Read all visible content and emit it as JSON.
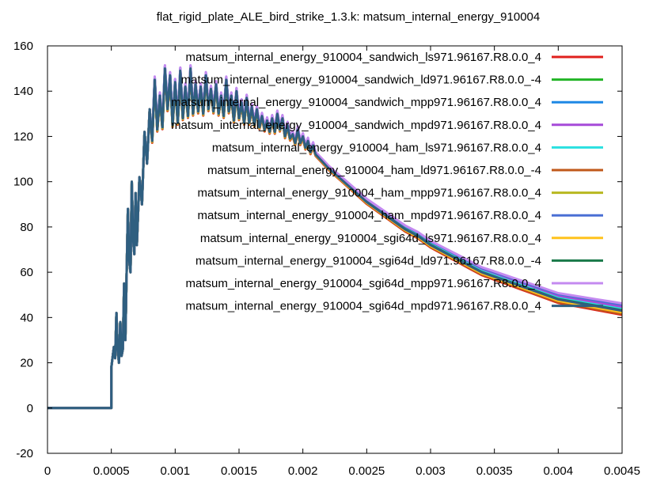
{
  "chart_data": {
    "type": "line",
    "title": "flat_rigid_plate_ALE_bird_strike_1.3.k: matsum_internal_energy_910004",
    "xlabel": "",
    "ylabel": "",
    "xlim": [
      0,
      0.0045
    ],
    "ylim": [
      -20,
      160
    ],
    "x_ticks": [
      0,
      0.0005,
      0.001,
      0.0015,
      0.002,
      0.0025,
      0.003,
      0.0035,
      0.004,
      0.0045
    ],
    "x_tick_labels": [
      "0",
      "0.0005",
      "0.001",
      "0.0015",
      "0.002",
      "0.0025",
      "0.003",
      "0.0035",
      "0.004",
      "0.0045"
    ],
    "y_ticks": [
      -20,
      0,
      20,
      40,
      60,
      80,
      100,
      120,
      140,
      160
    ],
    "y_tick_labels": [
      "-20",
      "0",
      "20",
      "40",
      "60",
      "80",
      "100",
      "120",
      "140",
      "160"
    ],
    "grid": false,
    "legend_position": "top-right",
    "base_curve": {
      "x": [
        0,
        0.0005,
        0.0005,
        0.00052,
        0.00053,
        0.00054,
        0.00055,
        0.00056,
        0.00057,
        0.00058,
        0.00059,
        0.0006,
        0.00061,
        0.00062,
        0.00063,
        0.00064,
        0.00065,
        0.00066,
        0.00067,
        0.00068,
        0.00069,
        0.0007,
        0.00072,
        0.00074,
        0.00076,
        0.00078,
        0.0008,
        0.00082,
        0.00084,
        0.00086,
        0.00088,
        0.0009,
        0.00092,
        0.00094,
        0.00096,
        0.00098,
        0.001,
        0.00102,
        0.00104,
        0.00106,
        0.00108,
        0.0011,
        0.00112,
        0.00114,
        0.00116,
        0.00118,
        0.0012,
        0.00122,
        0.00124,
        0.00126,
        0.00128,
        0.0013,
        0.00132,
        0.00134,
        0.00136,
        0.00138,
        0.0014,
        0.00142,
        0.00144,
        0.00146,
        0.00148,
        0.0015,
        0.00152,
        0.00154,
        0.00156,
        0.00158,
        0.0016,
        0.00162,
        0.00164,
        0.00166,
        0.00168,
        0.0017,
        0.00172,
        0.00174,
        0.00176,
        0.00178,
        0.0018,
        0.00182,
        0.00184,
        0.00186,
        0.00188,
        0.0019,
        0.00192,
        0.00194,
        0.00196,
        0.00198,
        0.002,
        0.00202,
        0.00204,
        0.00206,
        0.00208,
        0.0021,
        0.00215,
        0.0022,
        0.0023,
        0.0024,
        0.0025,
        0.0026,
        0.0027,
        0.0028,
        0.0029,
        0.003,
        0.0031,
        0.0032,
        0.0033,
        0.0034,
        0.0035,
        0.0036,
        0.0037,
        0.0038,
        0.0039,
        0.004,
        0.0041,
        0.0042,
        0.0043,
        0.0044,
        0.0045
      ],
      "y": [
        0,
        0,
        18,
        27,
        22,
        42,
        26,
        20,
        38,
        23,
        26,
        55,
        30,
        60,
        88,
        65,
        60,
        100,
        75,
        68,
        95,
        72,
        102,
        90,
        122,
        108,
        132,
        118,
        145,
        123,
        138,
        124,
        150,
        132,
        147,
        125,
        144,
        126,
        149,
        128,
        142,
        129,
        150,
        130,
        143,
        131,
        142,
        130,
        147,
        132,
        141,
        131,
        143,
        130,
        138,
        129,
        145,
        131,
        138,
        127,
        140,
        128,
        135,
        126,
        137,
        126,
        133,
        125,
        132,
        124,
        129,
        123,
        127,
        122,
        128,
        122,
        130,
        123,
        128,
        120,
        125,
        119,
        121,
        117,
        123,
        117,
        120,
        115,
        118,
        113,
        116,
        112,
        109,
        106,
        101,
        96,
        91,
        87,
        83,
        79,
        76,
        72,
        69,
        66,
        63,
        60,
        58,
        56,
        54,
        52,
        50,
        48,
        47,
        46,
        45,
        44,
        43
      ],
      "note_offsets_after_x": 0.0021
    },
    "series": [
      {
        "name": "matsum_internal_energy_910004_sandwich_ls971.96167.R8.0.0_4",
        "color": "#e0201c",
        "offset": -1.0
      },
      {
        "name": "matsum_internal_energy_910004_sandwich_ld971.96167.R8.0.0_-4",
        "color": "#22b426",
        "offset": -0.6
      },
      {
        "name": "matsum_internal_energy_910004_sandwich_mpp971.96167.R8.0.0_4",
        "color": "#1e88e5",
        "offset": 1.2
      },
      {
        "name": "matsum_internal_energy_910004_sandwich_mpd971.96167.R8.0.0_4",
        "color": "#a64ad8",
        "offset": 0.9
      },
      {
        "name": "matsum_internal_energy_910004_ham_ls971.96167.R8.0.0_4",
        "color": "#2ae0e0",
        "offset": 0.4
      },
      {
        "name": "matsum_internal_energy_910004_ham_ld971.96167.R8.0.0_-4",
        "color": "#c0581a",
        "offset": -0.8
      },
      {
        "name": "matsum_internal_energy_910004_ham_mpp971.96167.R8.0.0_4",
        "color": "#b8b820",
        "offset": -0.2
      },
      {
        "name": "matsum_internal_energy_910004_ham_mpd971.96167.R8.0.0_4",
        "color": "#4a6fd4",
        "offset": 1.5
      },
      {
        "name": "matsum_internal_energy_910004_sgi64d_ls971.96167.R8.0.0_4",
        "color": "#ffc21c",
        "offset": -0.4
      },
      {
        "name": "matsum_internal_energy_910004_sgi64d_ld971.96167.R8.0.0_-4",
        "color": "#1a7a4a",
        "offset": 0.1
      },
      {
        "name": "matsum_internal_energy_910004_sgi64d_mpp971.96167.R8.0.0_4",
        "color": "#c48af0",
        "offset": 1.8
      },
      {
        "name": "matsum_internal_energy_910004_sgi64d_mpd971.96167.R8.0.0_4",
        "color": "#2f5f80",
        "offset": 0.0
      }
    ]
  }
}
